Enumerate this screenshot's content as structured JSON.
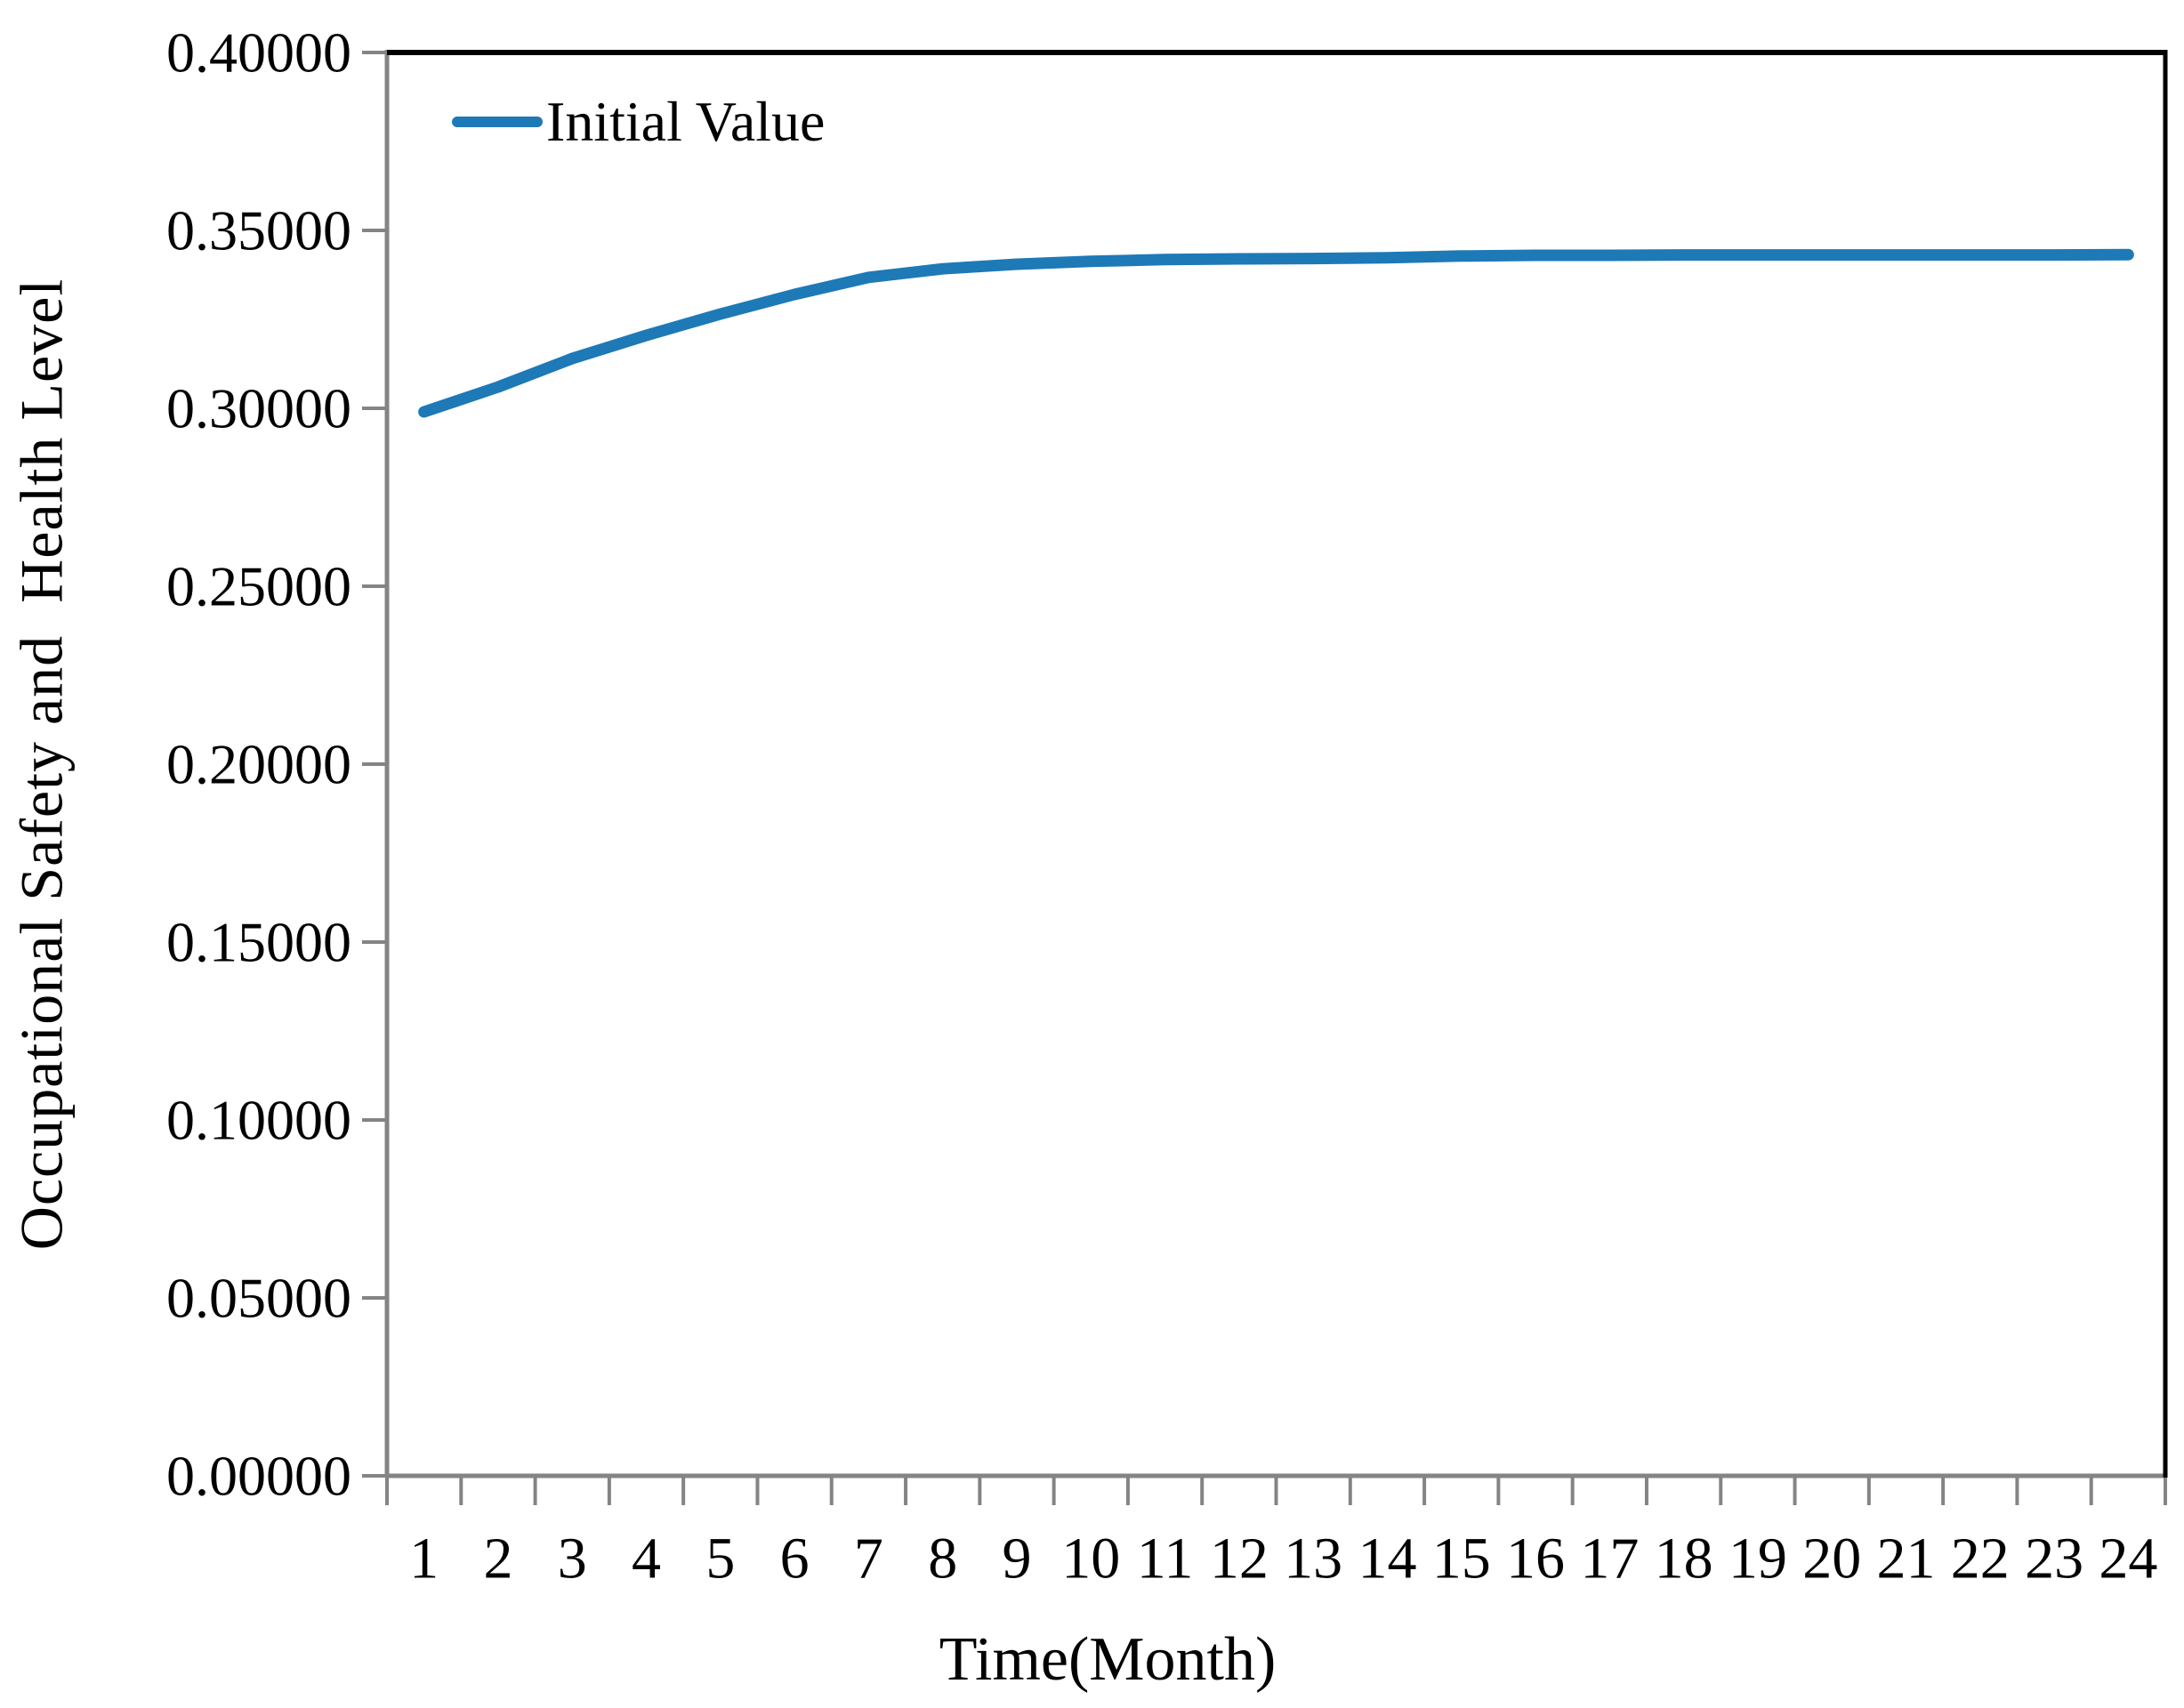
{
  "chart_data": {
    "type": "line",
    "title": "",
    "xlabel": "Time(Month)",
    "ylabel": "Occupational Safety and  Health Level",
    "x": [
      1,
      2,
      3,
      4,
      5,
      6,
      7,
      8,
      9,
      10,
      11,
      12,
      13,
      14,
      15,
      16,
      17,
      18,
      19,
      20,
      21,
      22,
      23,
      24
    ],
    "series": [
      {
        "name": "Initial Value",
        "values": [
          0.299,
          0.306,
          0.314,
          0.3205,
          0.3265,
          0.332,
          0.3368,
          0.3392,
          0.3405,
          0.3413,
          0.3418,
          0.342,
          0.3421,
          0.3423,
          0.3428,
          0.343,
          0.343,
          0.3431,
          0.3431,
          0.3431,
          0.3431,
          0.3431,
          0.3431,
          0.3432
        ]
      }
    ],
    "ylim": [
      0.0,
      0.4
    ],
    "ytick_step": 0.05,
    "ytick_labels": [
      "0.00000",
      "0.05000",
      "0.10000",
      "0.15000",
      "0.20000",
      "0.25000",
      "0.30000",
      "0.35000",
      "0.40000"
    ],
    "grid": false,
    "legend_position": "inside-top-left",
    "line_color": "#1E79B7",
    "axis_color": "#848484",
    "border_color": "#000000",
    "text_color": "#000000"
  }
}
